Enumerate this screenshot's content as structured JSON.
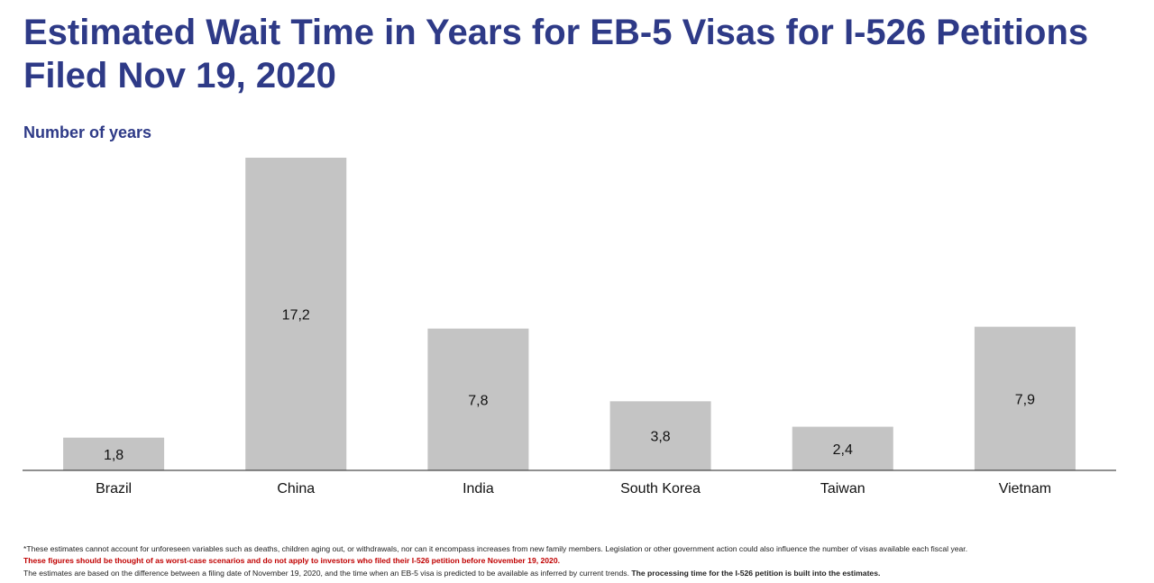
{
  "chart_data": {
    "type": "bar",
    "title": "Estimated Wait Time in Years for EB-5 Visas for I-526 Petitions Filed Nov 19, 2020",
    "ylabel": "Number of years",
    "xlabel": "",
    "categories": [
      "Brazil",
      "China",
      "India",
      "South Korea",
      "Taiwan",
      "Vietnam"
    ],
    "values": [
      1.8,
      17.2,
      7.8,
      3.8,
      2.4,
      7.9
    ],
    "data_labels": [
      "1,8",
      "17,2",
      "7,8",
      "3,8",
      "2,4",
      "7,9"
    ],
    "ylim": [
      0,
      17.2
    ],
    "grid": false,
    "bar_color": "#C4C4C4"
  },
  "notes": {
    "line1": "*These estimates cannot account for unforeseen variables such as deaths, children aging out, or withdrawals, nor can it encompass increases from new family members. Legislation or other government action could also influence the number of visas available each fiscal year.",
    "line2": "These figures should be thought of as worst-case scenarios and do not apply to investors who filed their I-526 petition before November 19, 2020.",
    "line3a": "The estimates are based on the difference between a filing date of November 19, 2020, and the time when an EB-5 visa is predicted to be available as inferred by current trends.",
    "line3b": "The processing time for the I-526 petition is built into the estimates."
  }
}
